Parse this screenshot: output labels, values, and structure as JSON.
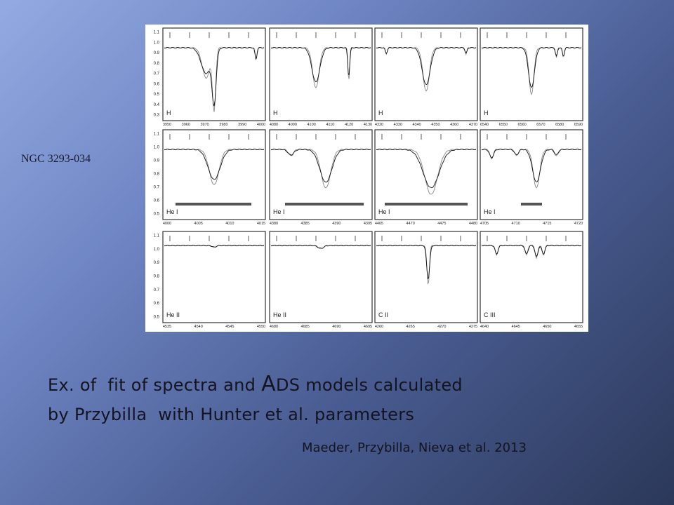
{
  "slide": {
    "label": "NGC 3293-034",
    "caption": [
      [
        "Ex. of  fit of spectra and ",
        "A",
        "DS models calculated"
      ],
      [
        "by Przybilla  with Hunter et al. parameters"
      ]
    ],
    "credit": "Maeder, Przybilla, Nieva et al. 2013"
  },
  "figure": {
    "rows": [
      {
        "y_tick_labels": [
          "1.1",
          "1.0",
          "0.9",
          "0.8",
          "0.7",
          "0.6",
          "0.5",
          "0.4",
          "0.3"
        ],
        "panels": [
          {
            "label": "H",
            "x_tick_labels": [
              "3950",
              "3960",
              "3970",
              "3980",
              "3990",
              "4000"
            ]
          },
          {
            "label": "H",
            "x_tick_labels": [
              "4080",
              "4090",
              "4100",
              "4110",
              "4120",
              "4130"
            ]
          },
          {
            "label": "H",
            "x_tick_labels": [
              "4320",
              "4330",
              "4340",
              "4350",
              "4360",
              "4370"
            ]
          },
          {
            "label": "H",
            "x_tick_labels": [
              "6540",
              "6550",
              "6560",
              "6570",
              "6580",
              "6590"
            ]
          }
        ]
      },
      {
        "y_tick_labels": [
          "1.1",
          "1.0",
          "0.9",
          "0.8",
          "0.7",
          "0.6",
          "0.5"
        ],
        "panels": [
          {
            "label": "He I",
            "x_tick_labels": [
              "4000",
              "4005",
              "4010",
              "4015"
            ]
          },
          {
            "label": "He I",
            "x_tick_labels": [
              "4380",
              "4385",
              "4390",
              "4395"
            ]
          },
          {
            "label": "He I",
            "x_tick_labels": [
              "4465",
              "4470",
              "4475",
              "4480"
            ]
          },
          {
            "label": "He I",
            "x_tick_labels": [
              "4705",
              "4710",
              "4715",
              "4720"
            ]
          }
        ]
      },
      {
        "y_tick_labels": [
          "1.1",
          "1.0",
          "0.9",
          "0.8",
          "0.7",
          "0.6",
          "0.5"
        ],
        "panels": [
          {
            "label": "He II",
            "x_tick_labels": [
              "4535",
              "4540",
              "4545",
              "4550"
            ]
          },
          {
            "label": "He II",
            "x_tick_labels": [
              "4680",
              "4685",
              "4690",
              "4695"
            ]
          },
          {
            "label": "C II",
            "x_tick_labels": [
              "4260",
              "4265",
              "4270",
              "4275"
            ]
          },
          {
            "label": "C III",
            "x_tick_labels": [
              "4640",
              "4645",
              "4650",
              "4655"
            ]
          }
        ]
      }
    ]
  }
}
